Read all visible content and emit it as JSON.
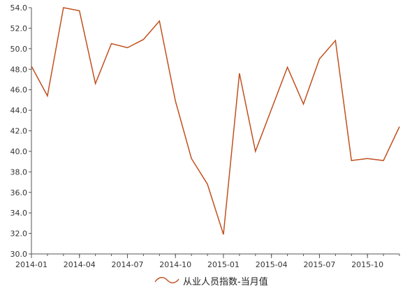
{
  "chart_data": {
    "type": "line",
    "title": "",
    "xlabel": "",
    "ylabel": "",
    "legend_position": "bottom-center",
    "grid": false,
    "ylim": [
      30.0,
      54.0
    ],
    "y_ticks": [
      "30.0",
      "32.0",
      "34.0",
      "36.0",
      "38.0",
      "40.0",
      "42.0",
      "44.0",
      "46.0",
      "48.0",
      "50.0",
      "52.0",
      "54.0"
    ],
    "x_ticks": [
      "2014-01",
      "2014-04",
      "2014-07",
      "2014-10",
      "2015-01",
      "2015-04",
      "2015-07",
      "2015-10"
    ],
    "x": [
      "2014-01",
      "2014-02",
      "2014-03",
      "2014-04",
      "2014-05",
      "2014-06",
      "2014-07",
      "2014-08",
      "2014-09",
      "2014-10",
      "2014-11",
      "2014-12",
      "2015-01",
      "2015-02",
      "2015-03",
      "2015-04",
      "2015-05",
      "2015-06",
      "2015-07",
      "2015-08",
      "2015-09",
      "2015-10",
      "2015-11",
      "2015-12"
    ],
    "series": [
      {
        "name": "从业人员指数-当月值",
        "color": "#c0501e",
        "values": [
          48.3,
          45.4,
          54.0,
          53.7,
          46.6,
          50.5,
          50.1,
          50.9,
          52.7,
          44.9,
          39.3,
          36.8,
          31.9,
          47.6,
          40.0,
          44.1,
          48.2,
          44.6,
          49.0,
          50.8,
          39.1,
          39.3,
          39.1,
          42.4
        ]
      }
    ]
  }
}
